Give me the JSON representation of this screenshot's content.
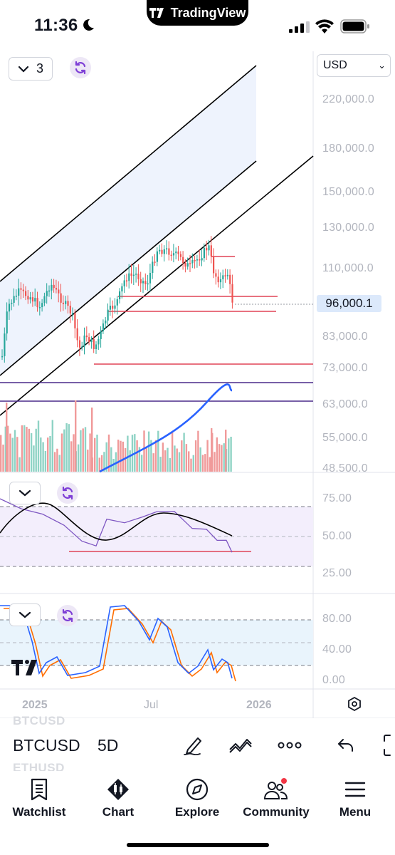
{
  "status_bar": {
    "time": "11:36",
    "island_label": "TradingView",
    "icons": [
      "moon-icon",
      "cellular-signal-icon",
      "wifi-icon",
      "battery-icon"
    ]
  },
  "chart": {
    "currency": "USD",
    "interval_count": "3",
    "last_price": "96,000.1",
    "price_axis": [
      "220,000.0",
      "180,000.0",
      "150,000.0",
      "130,000.0",
      "110,000.0",
      "83,000.0",
      "73,000.0",
      "63,000.0",
      "55,000.0",
      "48,500.0"
    ],
    "rsi_axis": [
      "75.00",
      "50.00",
      "25.00"
    ],
    "stoch_axis": [
      "80.00",
      "40.00",
      "0.00"
    ],
    "time_axis": [
      "2025",
      "Jul",
      "2026"
    ],
    "colors": {
      "up": "#26a69a",
      "down": "#ef5350",
      "channel": "#000000",
      "channel_fill": "#eef3fd",
      "support": "#e04456",
      "purple_line": "#4a2a8a",
      "ma": "#2962ff",
      "rsi": "#7e57c2",
      "rsi_ma": "#000000",
      "stoch_k": "#2962ff",
      "stoch_d": "#ff6d00"
    }
  },
  "toolbar": {
    "symbol": "BTCUSD",
    "symbol_above": "BTCUSD",
    "symbol_below": "ETHUSD",
    "timeframe": "5D",
    "icons": [
      "draw-pen-icon",
      "indicators-icon",
      "more-icon",
      "undo-icon",
      "fullscreen-icon"
    ]
  },
  "nav": {
    "items": [
      {
        "label": "Watchlist",
        "icon": "watchlist-icon"
      },
      {
        "label": "Chart",
        "icon": "chart-icon"
      },
      {
        "label": "Explore",
        "icon": "compass-icon"
      },
      {
        "label": "Community",
        "icon": "community-icon"
      },
      {
        "label": "Menu",
        "icon": "menu-icon"
      }
    ]
  }
}
